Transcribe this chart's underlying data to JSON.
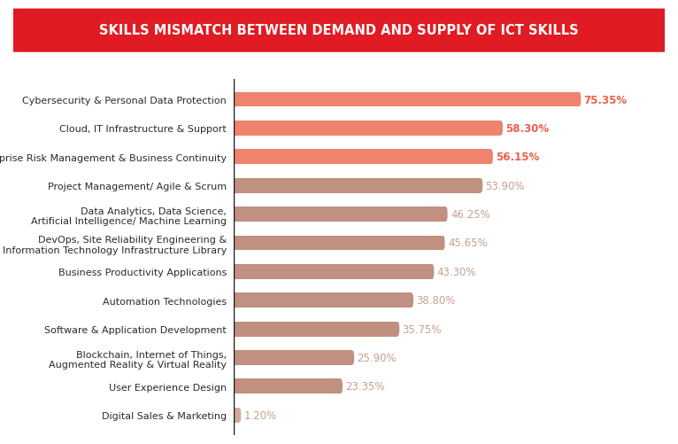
{
  "title": "SKILLS MISMATCH BETWEEN DEMAND AND SUPPLY OF ICT SKILLS",
  "title_bg_color": "#e01b24",
  "title_text_color": "#ffffff",
  "background_color": "#ffffff",
  "categories": [
    "Cybersecurity & Personal Data Protection",
    "Cloud, IT Infrastructure & Support",
    "Enterprise Risk Management & Business Continuity",
    "Project Management/ Agile & Scrum",
    "Data Analytics, Data Science,\nArtificial Intelligence/ Machine Learning",
    "DevOps, Site Reliability Engineering &\nInformation Technology Infrastructure Library",
    "Business Productivity Applications",
    "Automation Technologies",
    "Software & Application Development",
    "Blockchain, Internet of Things,\nAugmented Reality & Virtual Reality",
    "User Experience Design",
    "Digital Sales & Marketing"
  ],
  "values": [
    75.35,
    58.3,
    56.15,
    53.9,
    46.25,
    45.65,
    43.3,
    38.8,
    35.75,
    25.9,
    23.35,
    1.2
  ],
  "bar_colors": [
    "#f0836e",
    "#f0836e",
    "#f0836e",
    "#c09080",
    "#c09080",
    "#c09080",
    "#c09080",
    "#c09080",
    "#c09080",
    "#c09080",
    "#c09080",
    "#d4a898"
  ],
  "value_colors_high": "#e8604a",
  "value_colors_low": "#c4a090",
  "high_threshold": 3,
  "label_fontsize": 8,
  "value_fontsize": 8.5,
  "xlim": [
    0,
    88
  ]
}
